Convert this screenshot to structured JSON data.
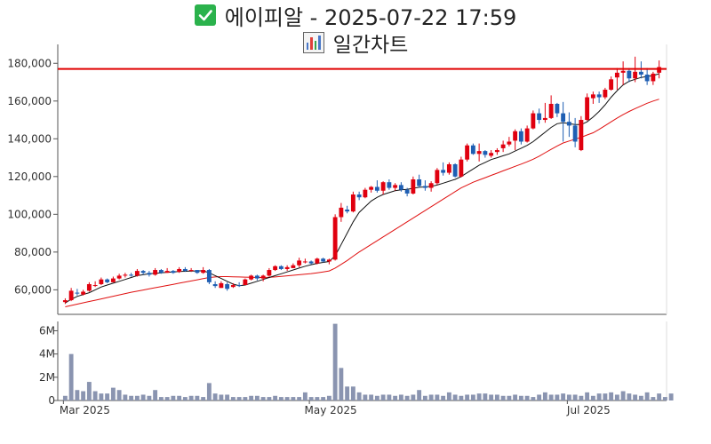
{
  "title": "에이피알 - 2025-07-22 17:59",
  "subtitle": "일간차트",
  "icons": {
    "title_icon": "green-check-icon",
    "subtitle_icon": "bar-chart-icon"
  },
  "colors": {
    "up": "#e0000f",
    "down": "#1f5fb3",
    "ma_short": "#111111",
    "ma_long": "#e01010",
    "reference_line": "#e00000",
    "volume": "#8a94b0"
  },
  "chart_data": [
    {
      "type": "candlestick",
      "title": "",
      "x_ticks": [
        "Mar 2025",
        "May 2025",
        "Jul 2025"
      ],
      "y_ticks": [
        "60,000",
        "80,000",
        "100,000",
        "120,000",
        "140,000",
        "160,000",
        "180,000"
      ],
      "ylim": [
        47000,
        190000
      ],
      "reference_line": 177000,
      "candles": [
        [
          53500,
          55500,
          52500,
          54500
        ],
        [
          54500,
          61000,
          54000,
          59500
        ],
        [
          58500,
          60500,
          57000,
          58000
        ],
        [
          57500,
          60000,
          57000,
          59000
        ],
        [
          59500,
          64000,
          59000,
          63000
        ],
        [
          62500,
          64500,
          61500,
          62500
        ],
        [
          63000,
          66500,
          62500,
          65500
        ],
        [
          65500,
          66000,
          63500,
          64000
        ],
        [
          64000,
          67000,
          64000,
          66000
        ],
        [
          66000,
          68500,
          65500,
          67500
        ],
        [
          67500,
          69000,
          66500,
          68000
        ],
        [
          68000,
          69000,
          67000,
          67500
        ],
        [
          67500,
          71000,
          67000,
          70000
        ],
        [
          70000,
          70500,
          68000,
          69000
        ],
        [
          69000,
          70000,
          67000,
          68000
        ],
        [
          68000,
          71500,
          67500,
          70500
        ],
        [
          70500,
          71000,
          68500,
          69000
        ],
        [
          69000,
          71500,
          69000,
          70000
        ],
        [
          70000,
          70500,
          68500,
          69000
        ],
        [
          69500,
          72000,
          69000,
          71000
        ],
        [
          71000,
          72000,
          69500,
          70000
        ],
        [
          70000,
          71500,
          69500,
          70500
        ],
        [
          70500,
          70500,
          68500,
          69000
        ],
        [
          69000,
          72000,
          68500,
          70500
        ],
        [
          70500,
          71000,
          63000,
          64000
        ],
        [
          63000,
          64500,
          61000,
          62000
        ],
        [
          61000,
          64500,
          61000,
          63500
        ],
        [
          63000,
          64000,
          59500,
          60500
        ],
        [
          61500,
          63500,
          61000,
          62500
        ],
        [
          62500,
          64000,
          61500,
          62000
        ],
        [
          62500,
          66000,
          62500,
          65500
        ],
        [
          65500,
          68000,
          65000,
          67500
        ],
        [
          67500,
          68000,
          65000,
          66000
        ],
        [
          66000,
          68000,
          64500,
          67500
        ],
        [
          67500,
          71500,
          67000,
          70500
        ],
        [
          70500,
          73000,
          70000,
          72500
        ],
        [
          72500,
          73000,
          70500,
          71000
        ],
        [
          71000,
          73000,
          70000,
          72000
        ],
        [
          71500,
          74000,
          71500,
          73000
        ],
        [
          73000,
          77000,
          72000,
          75500
        ],
        [
          75000,
          76500,
          74000,
          75000
        ],
        [
          75000,
          75500,
          73500,
          74000
        ],
        [
          74000,
          77000,
          73500,
          76500
        ],
        [
          76500,
          77000,
          74500,
          75000
        ],
        [
          75000,
          76500,
          73500,
          76000
        ],
        [
          76000,
          100000,
          75500,
          98500
        ],
        [
          98500,
          106000,
          96000,
          103500
        ],
        [
          102500,
          104500,
          100500,
          101500
        ],
        [
          101500,
          112000,
          101000,
          110500
        ],
        [
          110500,
          112000,
          107500,
          109000
        ],
        [
          109000,
          114000,
          108500,
          113000
        ],
        [
          113000,
          115000,
          111500,
          114500
        ],
        [
          114500,
          118000,
          111500,
          112500
        ],
        [
          112500,
          117500,
          110500,
          117000
        ],
        [
          117000,
          118500,
          113000,
          114000
        ],
        [
          114000,
          116500,
          112500,
          115500
        ],
        [
          115500,
          117000,
          112000,
          113000
        ],
        [
          113000,
          114000,
          109500,
          111000
        ],
        [
          111000,
          120000,
          110500,
          118500
        ],
        [
          118500,
          121000,
          114000,
          115000
        ],
        [
          115000,
          118000,
          112500,
          114000
        ],
        [
          114000,
          117500,
          112000,
          116500
        ],
        [
          116500,
          124500,
          115500,
          123500
        ],
        [
          123500,
          127500,
          120500,
          122000
        ],
        [
          122000,
          127500,
          121000,
          126500
        ],
        [
          126500,
          127000,
          119500,
          120000
        ],
        [
          120000,
          130500,
          119500,
          129000
        ],
        [
          129000,
          137500,
          128000,
          136500
        ],
        [
          136500,
          137500,
          131500,
          132000
        ],
        [
          132000,
          137500,
          128000,
          133500
        ],
        [
          133500,
          134000,
          130000,
          131500
        ],
        [
          131000,
          134000,
          130000,
          132500
        ],
        [
          133000,
          135000,
          131500,
          134000
        ],
        [
          135000,
          139000,
          133000,
          137000
        ],
        [
          137000,
          141000,
          136000,
          138500
        ],
        [
          139000,
          145000,
          134000,
          144000
        ],
        [
          144000,
          145500,
          137000,
          138500
        ],
        [
          138500,
          147000,
          138000,
          145500
        ],
        [
          145500,
          155000,
          145000,
          153500
        ],
        [
          153500,
          156000,
          148000,
          150000
        ],
        [
          150000,
          159000,
          148500,
          151000
        ],
        [
          151000,
          163000,
          150500,
          158500
        ],
        [
          158500,
          159000,
          151500,
          153500
        ],
        [
          153500,
          159500,
          138500,
          149000
        ],
        [
          149000,
          154000,
          141000,
          147000
        ],
        [
          147000,
          151000,
          135500,
          138500
        ],
        [
          134000,
          152000,
          133500,
          150000
        ],
        [
          150000,
          164000,
          149500,
          162000
        ],
        [
          161500,
          165000,
          158500,
          163500
        ],
        [
          163500,
          165000,
          159000,
          162000
        ],
        [
          162000,
          167000,
          161000,
          166000
        ],
        [
          166000,
          173000,
          165500,
          171500
        ],
        [
          172500,
          177500,
          166000,
          175000
        ],
        [
          175000,
          181000,
          168500,
          176000
        ],
        [
          176000,
          177500,
          170000,
          172000
        ],
        [
          172000,
          183500,
          170000,
          175500
        ],
        [
          175500,
          181000,
          172000,
          174000
        ],
        [
          174000,
          177500,
          168500,
          170500
        ],
        [
          170500,
          175500,
          168500,
          174500
        ],
        [
          175000,
          181500,
          172000,
          178000
        ]
      ],
      "ma_short": [
        53000,
        55000,
        56500,
        57500,
        58500,
        60000,
        61500,
        62500,
        63500,
        64500,
        65500,
        66500,
        67500,
        68000,
        68500,
        68800,
        69000,
        69300,
        69500,
        69700,
        69800,
        69900,
        70000,
        70100,
        69000,
        67500,
        66000,
        64500,
        63000,
        62200,
        62500,
        63500,
        64500,
        65500,
        66500,
        67500,
        68500,
        69500,
        70500,
        71500,
        72500,
        73300,
        74000,
        74500,
        75000,
        78000,
        84000,
        90000,
        96000,
        101000,
        104000,
        107000,
        109000,
        110500,
        111500,
        112500,
        113000,
        113200,
        113800,
        114300,
        114500,
        114800,
        115500,
        116500,
        117500,
        118500,
        120000,
        122000,
        124000,
        126000,
        127500,
        129000,
        130000,
        131000,
        132000,
        133500,
        135000,
        136500,
        138500,
        141000,
        143500,
        146000,
        148000,
        148500,
        148000,
        147500,
        147500,
        149000,
        151500,
        154500,
        158000,
        162000,
        165500,
        168500,
        170500,
        171500,
        172500,
        173000,
        173500,
        174500
      ],
      "ma_long": [
        51000,
        51700,
        52400,
        53100,
        53800,
        54500,
        55200,
        55900,
        56600,
        57300,
        58000,
        58700,
        59300,
        59900,
        60500,
        61100,
        61700,
        62300,
        62900,
        63500,
        64100,
        64700,
        65300,
        65900,
        66500,
        66800,
        67000,
        67000,
        66900,
        66800,
        66700,
        66600,
        66500,
        66500,
        66600,
        66800,
        67100,
        67400,
        67700,
        68000,
        68300,
        68600,
        69000,
        69500,
        70000,
        71500,
        73500,
        75500,
        77800,
        80000,
        82000,
        84000,
        86000,
        88000,
        90000,
        92000,
        94000,
        96000,
        98000,
        100000,
        102000,
        104000,
        106000,
        108000,
        110000,
        112000,
        114000,
        115500,
        117000,
        118200,
        119400,
        120600,
        121800,
        123000,
        124200,
        125400,
        126600,
        127800,
        129200,
        130800,
        132600,
        134400,
        136200,
        137800,
        138800,
        139800,
        140800,
        142000,
        143200,
        145000,
        147000,
        149000,
        151000,
        152800,
        154500,
        156000,
        157400,
        158800,
        160000,
        161000
      ],
      "volume": {
        "y_ticks": [
          "0",
          "2M",
          "4M",
          "6M"
        ],
        "ylim": [
          0,
          6800000
        ],
        "values": [
          400000,
          4000000,
          900000,
          800000,
          1600000,
          800000,
          600000,
          600000,
          1100000,
          900000,
          500000,
          400000,
          400000,
          500000,
          400000,
          900000,
          300000,
          300000,
          400000,
          400000,
          300000,
          400000,
          400000,
          300000,
          1500000,
          600000,
          500000,
          500000,
          300000,
          300000,
          300000,
          400000,
          400000,
          300000,
          300000,
          400000,
          300000,
          300000,
          300000,
          300000,
          700000,
          300000,
          300000,
          300000,
          400000,
          6600000,
          2800000,
          1200000,
          1200000,
          700000,
          500000,
          500000,
          400000,
          500000,
          500000,
          400000,
          500000,
          400000,
          500000,
          900000,
          400000,
          500000,
          500000,
          400000,
          700000,
          500000,
          400000,
          500000,
          500000,
          600000,
          600000,
          500000,
          500000,
          400000,
          400000,
          500000,
          400000,
          400000,
          300000,
          500000,
          700000,
          500000,
          500000,
          600000,
          500000,
          500000,
          400000,
          700000,
          400000,
          600000,
          600000,
          700000,
          500000,
          800000,
          600000,
          500000,
          400000,
          700000,
          300000,
          600000,
          300000,
          600000
        ]
      }
    }
  ]
}
